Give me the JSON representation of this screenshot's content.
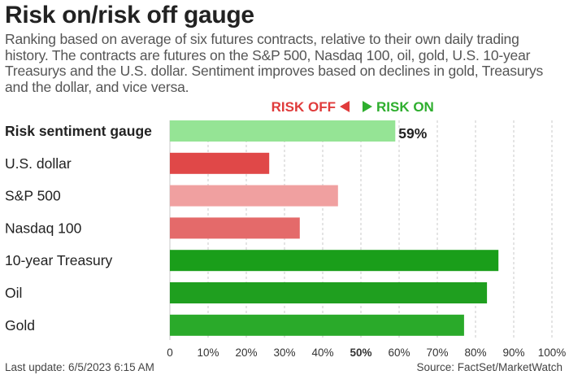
{
  "title": "Risk on/risk off gauge",
  "subtitle": "Ranking based on average of six futures contracts, relative to their own daily trading history. The contracts are futures on the S&P 500, Nasdaq 100, oil, gold, U.S. 10-year Treasurys and the U.S. dollar. Sentiment improves based on declines in gold, Treasurys and the dollar, and vice versa.",
  "legend": {
    "risk_off": "RISK OFF",
    "risk_on": "RISK ON"
  },
  "footer": {
    "last_update": "Last update: 6/5/2023 6:15 AM",
    "source": "Source: FactSet/MarketWatch"
  },
  "colors": {
    "risk_off_label": "#e03b3b",
    "risk_on_label": "#2eae2e",
    "gauge": "#95e495",
    "dark_red": "#e04848",
    "light_red": "#f0a0a0",
    "medium_red": "#e46a6a",
    "dark_green": "#1a9e1a",
    "green": "#2aaa2a",
    "grid": "#c8c8c8"
  },
  "chart_data": {
    "type": "bar",
    "orientation": "horizontal",
    "categories": [
      "Risk sentiment gauge",
      "U.S. dollar",
      "S&P 500",
      "Nasdaq 100",
      "10-year Treasury",
      "Oil",
      "Gold"
    ],
    "values": [
      59,
      26,
      44,
      34,
      86,
      83,
      77
    ],
    "value_labels": [
      "59%",
      "",
      "",
      "",
      "",
      "",
      ""
    ],
    "bold_categories": [
      "Risk sentiment gauge"
    ],
    "bar_colors": [
      "#95e495",
      "#e04848",
      "#f0a0a0",
      "#e46a6a",
      "#1a9e1a",
      "#1f9f1f",
      "#2aaa2a"
    ],
    "xlim": [
      0,
      100
    ],
    "xticks": [
      "0",
      "10%",
      "20%",
      "30%",
      "40%",
      "50%",
      "60%",
      "70%",
      "80%",
      "90%",
      "100%"
    ],
    "bold_tick": "50%",
    "grid": true,
    "grid_style": "dashed vertical",
    "xlabel": "",
    "ylabel": ""
  }
}
